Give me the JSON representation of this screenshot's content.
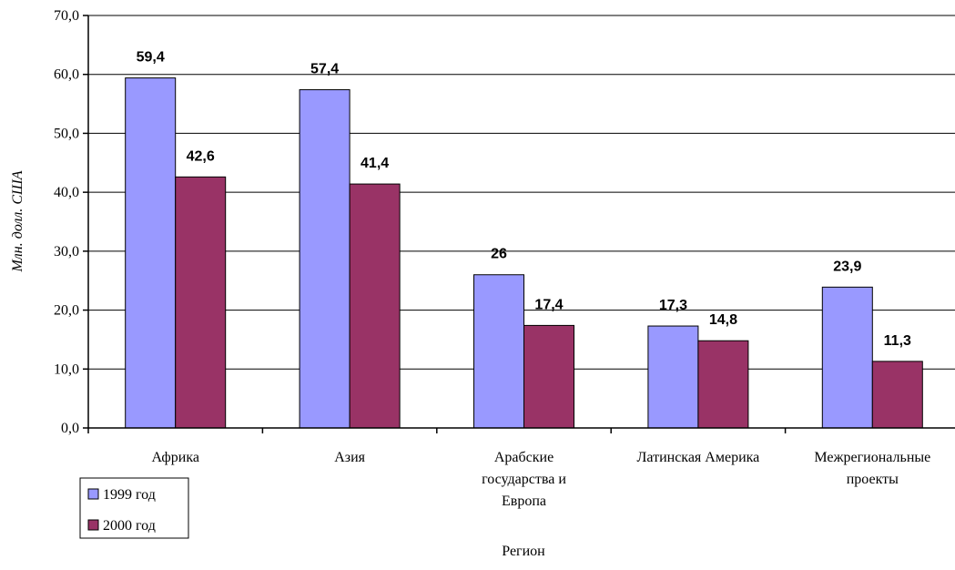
{
  "chart_data": {
    "type": "bar",
    "categories": [
      [
        "Африка"
      ],
      [
        "Азия"
      ],
      [
        "Арабские",
        "государства и",
        "Европа"
      ],
      [
        "Латинская Америка"
      ],
      [
        "Межрегиональные",
        "проекты"
      ]
    ],
    "series": [
      {
        "name": "1999 год",
        "color": "#9999ff",
        "values": [
          59.4,
          57.4,
          26,
          17.3,
          23.9
        ],
        "labels": [
          "59,4",
          "57,4",
          "26",
          "17,3",
          "23,9"
        ]
      },
      {
        "name": "2000 год",
        "color": "#993366",
        "values": [
          42.6,
          41.4,
          17.4,
          14.8,
          11.3
        ],
        "labels": [
          "42,6",
          "41,4",
          "17,4",
          "14,8",
          "11,3"
        ]
      }
    ],
    "xlabel": "Регион",
    "ylabel": "Млн. долл. США",
    "ylim": [
      0,
      70
    ],
    "yticks": [
      0,
      10,
      20,
      30,
      40,
      50,
      60,
      70
    ],
    "ytick_labels": [
      "0,0",
      "10,0",
      "20,0",
      "30,0",
      "40,0",
      "50,0",
      "60,0",
      "70,0"
    ],
    "grid": true,
    "legend_position": "bottom-left"
  }
}
